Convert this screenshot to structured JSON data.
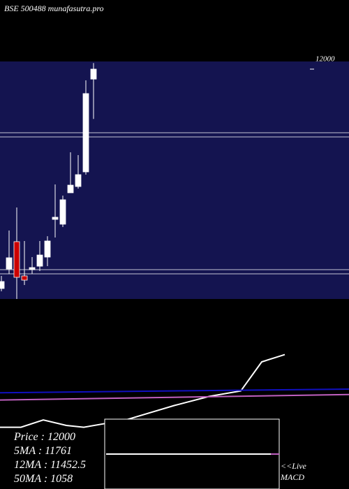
{
  "chart_data": [
    {
      "type": "candlestick",
      "title": "BSE 500488 munafasutra.pro",
      "categories": [
        null,
        null,
        null,
        null,
        null,
        null,
        null,
        null,
        null,
        null,
        null,
        null,
        null
      ],
      "open": [
        9137,
        9392,
        9748,
        9301,
        9383,
        9428,
        9547,
        10039,
        9976,
        10386,
        10468,
        10659,
        11870
      ],
      "high": [
        9301,
        9893,
        10194,
        9757,
        9547,
        9757,
        9820,
        10495,
        10349,
        10915,
        10878,
        11854,
        12080
      ],
      "low": [
        9100,
        9328,
        9000,
        9182,
        9328,
        9365,
        9428,
        9802,
        9939,
        10386,
        10441,
        10623,
        11350
      ],
      "close": [
        9228,
        9538,
        9283,
        9246,
        9410,
        9574,
        9757,
        10067,
        10295,
        10486,
        10623,
        11681,
        12000
      ],
      "up_color": "#ffffff",
      "down_color": "#cc0000",
      "panel_color": "#141450",
      "ylim": [
        9000,
        12100
      ],
      "yticks": [
        {
          "value": 12000,
          "label": "12000"
        }
      ],
      "levels": [
        11170,
        11115,
        9383,
        9328
      ]
    },
    {
      "type": "line",
      "xlim": [
        0,
        500
      ],
      "ylim": [
        0,
        100
      ],
      "series": [
        {
          "color": "#ffffff",
          "x": [
            0,
            30,
            62,
            95,
            120,
            180,
            250,
            300,
            345,
            375,
            408
          ],
          "values": [
            34,
            34,
            38,
            35,
            34,
            38,
            46,
            51,
            54,
            70,
            74
          ]
        },
        {
          "color": "#1010c0",
          "x": [
            0,
            500
          ],
          "values": [
            53,
            55
          ]
        },
        {
          "color": "#c060c0",
          "x": [
            0,
            500
          ],
          "values": [
            49,
            52
          ]
        }
      ],
      "info": [
        "Price : 12000",
        "5MA : 11761",
        "12MA : 11452.5",
        "50MA : 1058"
      ],
      "macd_label": [
        "<<Live",
        "MACD"
      ]
    }
  ]
}
